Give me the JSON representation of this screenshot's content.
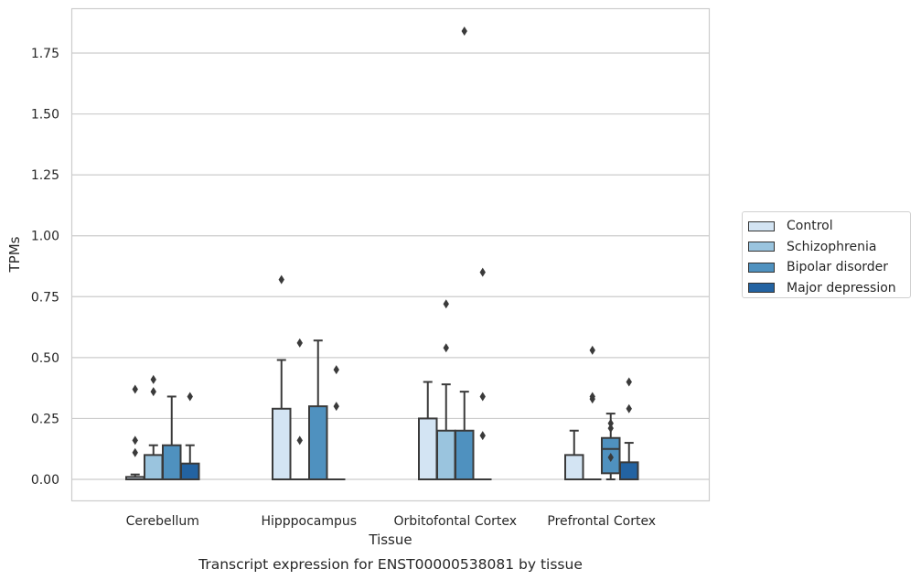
{
  "chart_data": {
    "type": "box",
    "title": "Transcript expression for ENST00000538081 by tissue",
    "xlabel": "Tissue",
    "ylabel": "TPMs",
    "ylim": [
      -0.09,
      1.94
    ],
    "yticks": [
      "0.00",
      "0.25",
      "0.50",
      "0.75",
      "1.00",
      "1.25",
      "1.50",
      "1.75"
    ],
    "grid": "horizontal",
    "legend_position": "right",
    "categories": [
      "Cerebellum",
      "Hipppocampus",
      "Orbitofontal Cortex",
      "Prefrontal Cortex"
    ],
    "series": [
      {
        "name": "Control",
        "color": "#d3e4f3",
        "boxes": [
          {
            "whislo": 0.0,
            "q1": 0.0,
            "med": 0.0,
            "q3": 0.01,
            "whishi": 0.02,
            "fliers": [
              0.37,
              0.16,
              0.11
            ]
          },
          {
            "whislo": 0.0,
            "q1": 0.0,
            "med": 0.0,
            "q3": 0.29,
            "whishi": 0.49,
            "fliers": [
              0.82
            ]
          },
          {
            "whislo": 0.0,
            "q1": 0.0,
            "med": 0.0,
            "q3": 0.25,
            "whishi": 0.4,
            "fliers": []
          },
          {
            "whislo": 0.0,
            "q1": 0.0,
            "med": 0.0,
            "q3": 0.1,
            "whishi": 0.2,
            "fliers": []
          }
        ]
      },
      {
        "name": "Schizophrenia",
        "color": "#9ac4de",
        "boxes": [
          {
            "whislo": 0.0,
            "q1": 0.0,
            "med": 0.0,
            "q3": 0.1,
            "whishi": 0.14,
            "fliers": [
              0.41,
              0.36
            ]
          },
          {
            "whislo": 0.0,
            "q1": 0.0,
            "med": 0.0,
            "q3": 0.0,
            "whishi": 0.0,
            "fliers": [
              0.56,
              0.16
            ]
          },
          {
            "whislo": 0.0,
            "q1": 0.0,
            "med": 0.0,
            "q3": 0.2,
            "whishi": 0.39,
            "fliers": [
              0.72,
              0.54
            ]
          },
          {
            "whislo": 0.0,
            "q1": 0.0,
            "med": 0.0,
            "q3": 0.0,
            "whishi": 0.0,
            "fliers": [
              0.53,
              0.34,
              0.33
            ]
          }
        ]
      },
      {
        "name": "Bipolar disorder",
        "color": "#4f91bf",
        "boxes": [
          {
            "whislo": 0.0,
            "q1": 0.0,
            "med": 0.0,
            "q3": 0.14,
            "whishi": 0.34,
            "fliers": []
          },
          {
            "whislo": 0.0,
            "q1": 0.0,
            "med": 0.0,
            "q3": 0.3,
            "whishi": 0.57,
            "fliers": []
          },
          {
            "whislo": 0.0,
            "q1": 0.0,
            "med": 0.0,
            "q3": 0.2,
            "whishi": 0.36,
            "fliers": [
              1.84
            ]
          },
          {
            "whislo": 0.0,
            "q1": 0.025,
            "med": 0.125,
            "q3": 0.17,
            "whishi": 0.27,
            "fliers": [
              0.23,
              0.21,
              0.09
            ]
          }
        ]
      },
      {
        "name": "Major depression",
        "color": "#2363a2",
        "boxes": [
          {
            "whislo": 0.0,
            "q1": 0.0,
            "med": 0.0,
            "q3": 0.065,
            "whishi": 0.14,
            "fliers": [
              0.34
            ]
          },
          {
            "whislo": 0.0,
            "q1": 0.0,
            "med": 0.0,
            "q3": 0.0,
            "whishi": 0.0,
            "fliers": [
              0.45,
              0.3
            ]
          },
          {
            "whislo": 0.0,
            "q1": 0.0,
            "med": 0.0,
            "q3": 0.0,
            "whishi": 0.0,
            "fliers": [
              0.85,
              0.34,
              0.18
            ]
          },
          {
            "whislo": 0.0,
            "q1": 0.0,
            "med": 0.0,
            "q3": 0.07,
            "whishi": 0.15,
            "fliers": [
              0.4,
              0.29
            ]
          }
        ]
      }
    ]
  }
}
